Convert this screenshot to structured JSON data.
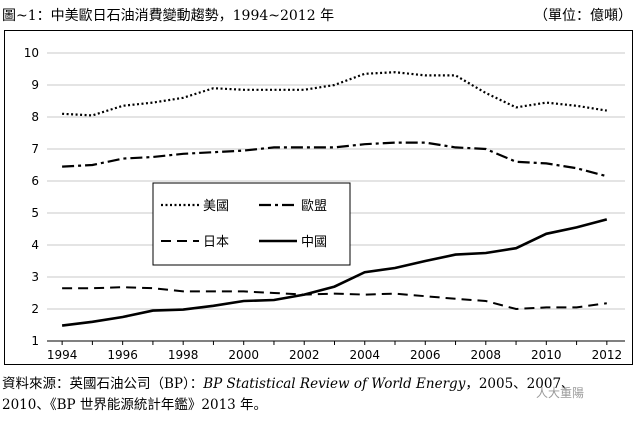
{
  "title": "圖~1：中美歐日石油消費變動趨勢，1994~2012 年",
  "unit": "（單位：億噸）",
  "source": {
    "prefix": "資料來源：英國石油公司（BP）：",
    "italic": "BP Statistical Review of World Energy",
    "suffix_line1": "，2005、2007、",
    "line2": "2010、《BP 世界能源統計年鑑》2013 年。"
  },
  "watermark": "人大重陽",
  "chart_data": {
    "type": "line",
    "x": [
      1994,
      1995,
      1996,
      1997,
      1998,
      1999,
      2000,
      2001,
      2002,
      2003,
      2004,
      2005,
      2006,
      2007,
      2008,
      2009,
      2010,
      2011,
      2012
    ],
    "xticks": [
      1994,
      1996,
      1998,
      2000,
      2002,
      2004,
      2006,
      2008,
      2010,
      2012
    ],
    "yticks": [
      1,
      2,
      3,
      4,
      5,
      6,
      7,
      8,
      9,
      10
    ],
    "xlim": [
      1993.5,
      2012.6
    ],
    "ylim": [
      1,
      10
    ],
    "grid": "horizontal",
    "legend_position": "center-left",
    "series": [
      {
        "name": "美國",
        "style": "dotted",
        "color": "#000000",
        "values": [
          8.1,
          8.05,
          8.35,
          8.45,
          8.6,
          8.9,
          8.85,
          8.85,
          8.85,
          9.0,
          9.35,
          9.4,
          9.3,
          9.3,
          8.75,
          8.3,
          8.45,
          8.35,
          8.2
        ]
      },
      {
        "name": "歐盟",
        "style": "dashdot",
        "color": "#000000",
        "values": [
          6.45,
          6.5,
          6.7,
          6.75,
          6.85,
          6.9,
          6.95,
          7.05,
          7.05,
          7.05,
          7.15,
          7.2,
          7.2,
          7.05,
          7.0,
          6.6,
          6.55,
          6.4,
          6.15
        ]
      },
      {
        "name": "日本",
        "style": "dashed",
        "color": "#000000",
        "values": [
          2.65,
          2.65,
          2.68,
          2.65,
          2.55,
          2.55,
          2.55,
          2.5,
          2.45,
          2.48,
          2.45,
          2.48,
          2.4,
          2.32,
          2.25,
          2.0,
          2.05,
          2.05,
          2.18
        ]
      },
      {
        "name": "中國",
        "style": "solid",
        "color": "#000000",
        "values": [
          1.48,
          1.6,
          1.75,
          1.95,
          1.98,
          2.1,
          2.25,
          2.28,
          2.45,
          2.7,
          3.15,
          3.28,
          3.5,
          3.7,
          3.75,
          3.9,
          4.35,
          4.55,
          4.8
        ]
      }
    ]
  }
}
